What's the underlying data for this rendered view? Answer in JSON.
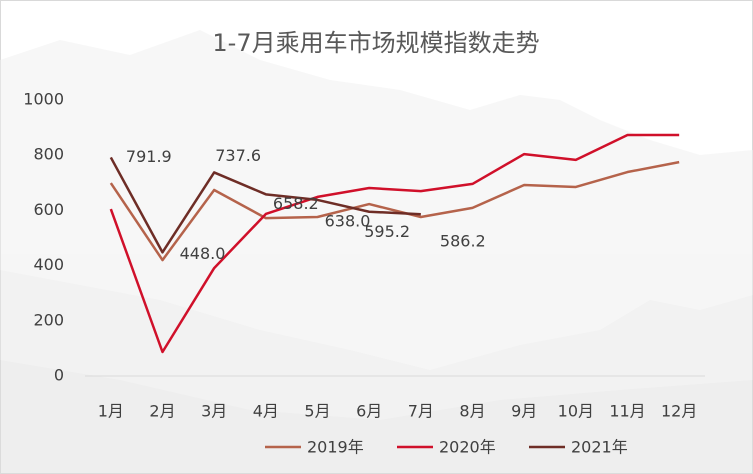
{
  "chart_data": {
    "type": "line",
    "title": "1-7月乘用车市场规模指数走势",
    "categories": [
      "1月",
      "2月",
      "3月",
      "4月",
      "5月",
      "6月",
      "7月",
      "8月",
      "9月",
      "10月",
      "11月",
      "12月"
    ],
    "series": [
      {
        "name": "2019年",
        "color": "#b5634b",
        "values": [
          699,
          420,
          674,
          572,
          576,
          623,
          576,
          609,
          692,
          685,
          739,
          775
        ]
      },
      {
        "name": "2020年",
        "color": "#d0102a",
        "values": [
          605,
          87,
          391,
          587,
          649,
          681,
          670,
          696,
          804,
          783,
          873,
          873
        ]
      },
      {
        "name": "2021年",
        "color": "#6e2d26",
        "values": [
          791.9,
          448.0,
          737.6,
          658.2,
          638.0,
          595.2,
          586.2,
          null,
          null,
          null,
          null,
          null
        ],
        "value_labels": [
          "791.9",
          "448.0",
          "737.6",
          "658.2",
          "638.0",
          "595.2",
          "586.2",
          null,
          null,
          null,
          null,
          null
        ]
      }
    ],
    "ylim": [
      0,
      1000
    ],
    "yticks": [
      0,
      200,
      400,
      600,
      800,
      1000
    ]
  }
}
